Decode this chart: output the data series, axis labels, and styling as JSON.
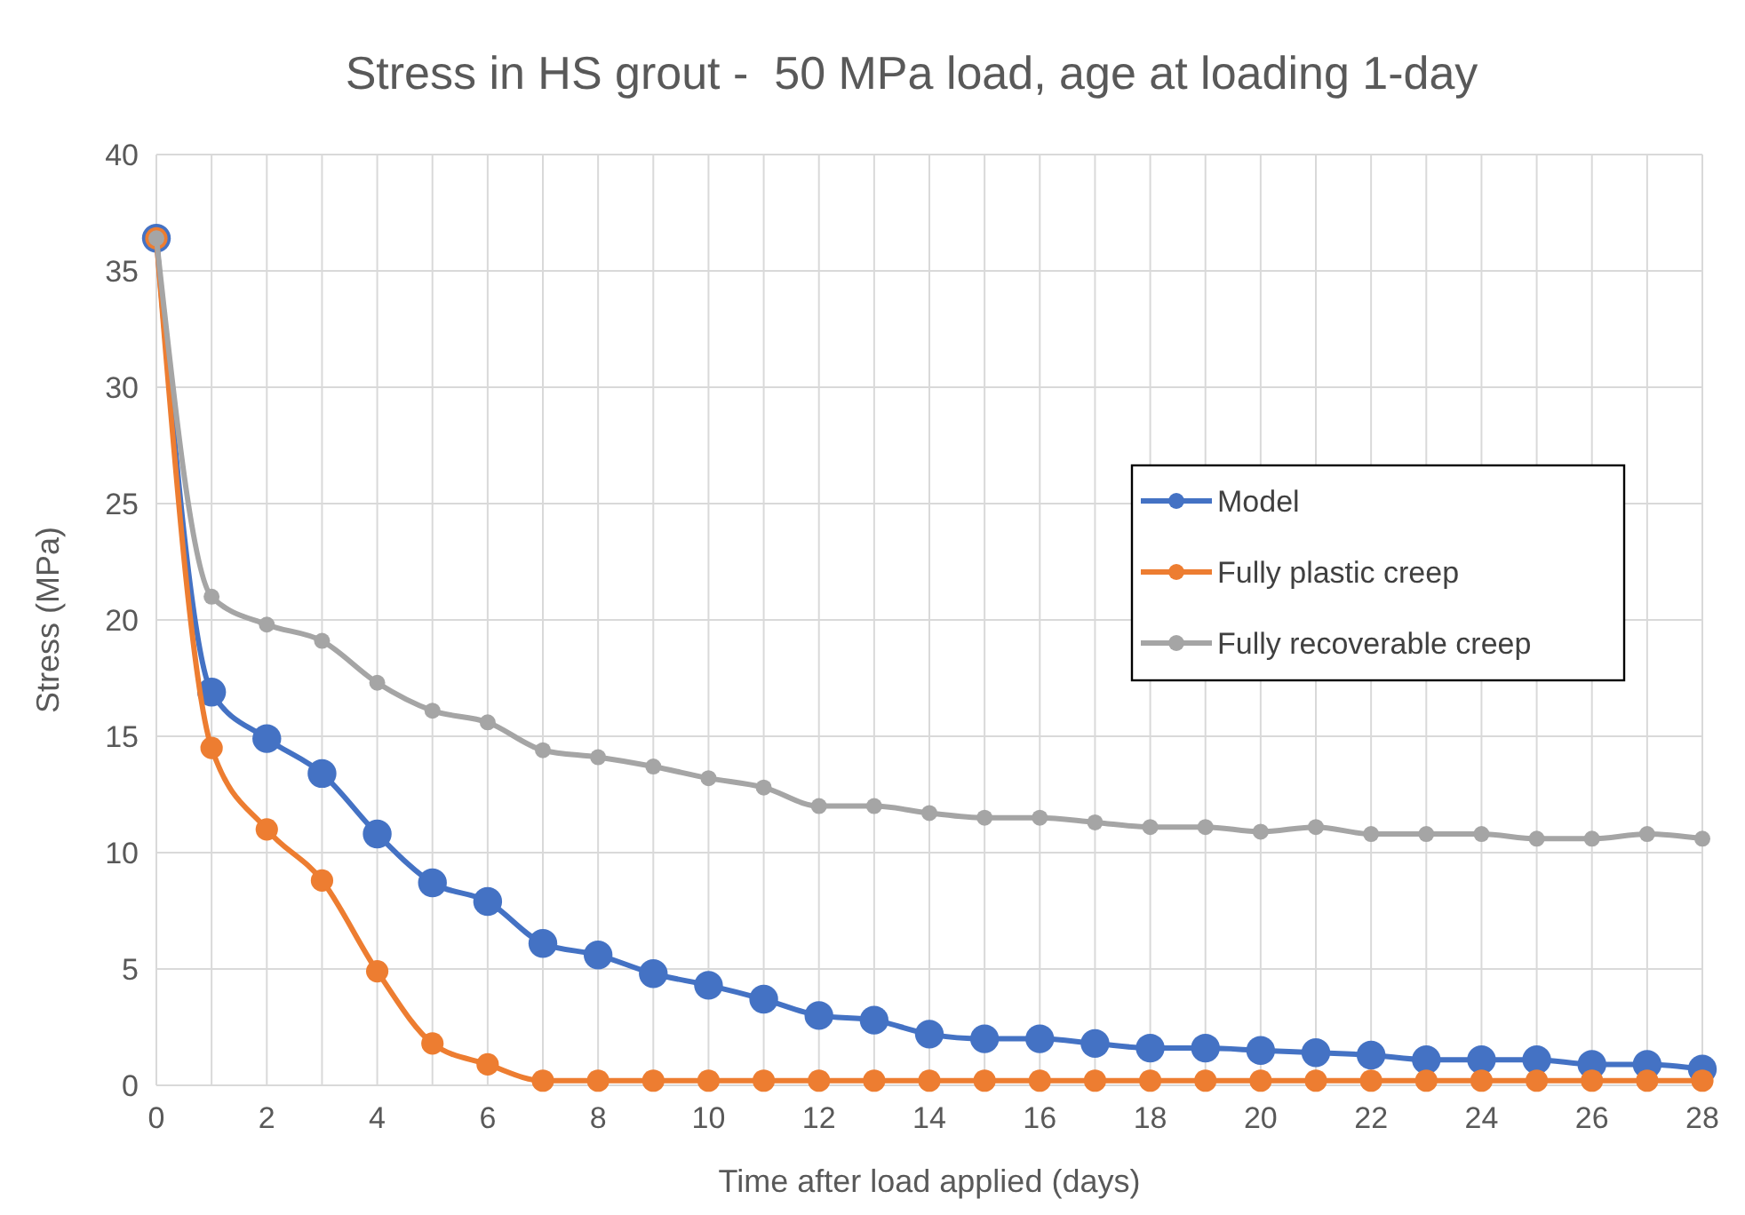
{
  "chart_data": {
    "type": "line",
    "title": "Stress in HS grout -  50 MPa load, age at loading 1-day",
    "xlabel": "Time after load applied (days)",
    "ylabel": "Stress (MPa)",
    "x": [
      0,
      1,
      2,
      3,
      4,
      5,
      6,
      7,
      8,
      9,
      10,
      11,
      12,
      13,
      14,
      15,
      16,
      17,
      18,
      19,
      20,
      21,
      22,
      23,
      24,
      25,
      26,
      27,
      28
    ],
    "series": [
      {
        "name": "Model",
        "color": "#4472c4",
        "values": [
          36.4,
          16.9,
          14.9,
          13.4,
          10.8,
          8.7,
          7.9,
          6.1,
          5.6,
          4.8,
          4.3,
          3.7,
          3.0,
          2.8,
          2.2,
          2.0,
          2.0,
          1.8,
          1.6,
          1.6,
          1.5,
          1.4,
          1.3,
          1.1,
          1.1,
          1.1,
          0.9,
          0.9,
          0.7
        ]
      },
      {
        "name": "Fully plastic creep",
        "color": "#ed7d31",
        "values": [
          36.4,
          14.5,
          11.0,
          8.8,
          4.9,
          1.8,
          0.9,
          0.2,
          0.2,
          0.2,
          0.2,
          0.2,
          0.2,
          0.2,
          0.2,
          0.2,
          0.2,
          0.2,
          0.2,
          0.2,
          0.2,
          0.2,
          0.2,
          0.2,
          0.2,
          0.2,
          0.2,
          0.2,
          0.2
        ]
      },
      {
        "name": "Fully recoverable creep",
        "color": "#a5a5a5",
        "values": [
          36.4,
          21.0,
          19.8,
          19.1,
          17.3,
          16.1,
          15.6,
          14.4,
          14.1,
          13.7,
          13.2,
          12.8,
          12.0,
          12.0,
          11.7,
          11.5,
          11.5,
          11.3,
          11.1,
          11.1,
          10.9,
          11.1,
          10.8,
          10.8,
          10.8,
          10.6,
          10.6,
          10.8,
          10.6
        ]
      }
    ],
    "xlim": [
      0,
      28
    ],
    "xticks": [
      0,
      {
        "value": 1,
        "label": null
      },
      2,
      {
        "value": 3,
        "label": null
      },
      4,
      {
        "value": 5,
        "label": null
      },
      6,
      {
        "value": 7,
        "label": null
      },
      8,
      {
        "value": 9,
        "label": null
      },
      10,
      {
        "value": 11,
        "label": null
      },
      12,
      {
        "value": 13,
        "label": null
      },
      14,
      {
        "value": 15,
        "label": null
      },
      16,
      {
        "value": 17,
        "label": null
      },
      18,
      {
        "value": 19,
        "label": null
      },
      20,
      {
        "value": 21,
        "label": null
      },
      22,
      {
        "value": 23,
        "label": null
      },
      24,
      {
        "value": 25,
        "label": null
      },
      26,
      {
        "value": 27,
        "label": null
      },
      28
    ],
    "ylim": [
      0,
      40
    ],
    "yticks": [
      0,
      5,
      10,
      15,
      20,
      25,
      30,
      35,
      40
    ],
    "grid": true,
    "legend": "right",
    "marker": "circle",
    "line_style": "solid"
  }
}
